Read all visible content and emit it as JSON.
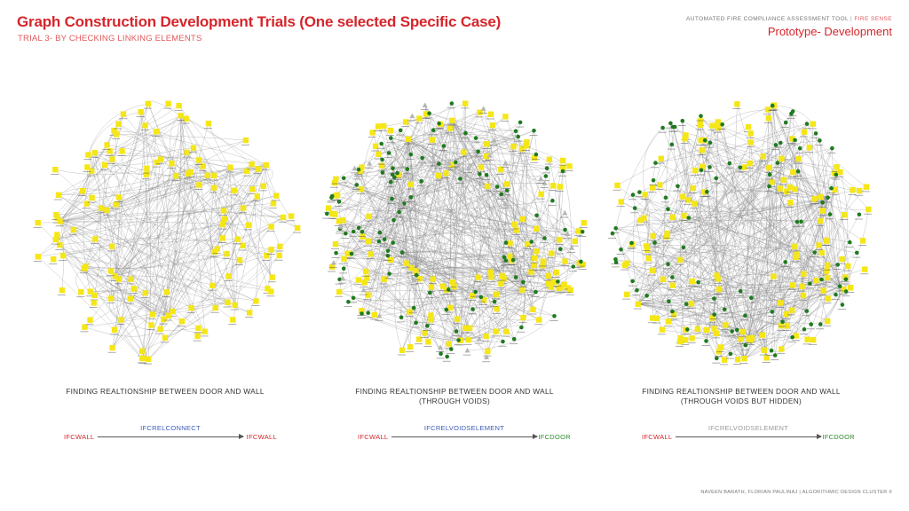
{
  "header": {
    "title": "Graph Construction Development Trials (One selected Specific Case)",
    "subtitle": "TRIAL 3- BY CHECKING LINKING ELEMENTS",
    "tool_name": "AUTOMATED FIRE COMPLIANCE ASSESSMENT TOOL",
    "tool_separator": " | ",
    "tool_brand": "FIRE SENSE",
    "stage": "Prototype- Development"
  },
  "panels": [
    {
      "caption_line1": "FINDING REALTIONSHIP BETWEEN DOOR AND WALL",
      "caption_line2": "",
      "relation": {
        "from": "IFCWALL",
        "label": "IFCRELCONNECT",
        "to": "IFCWALL",
        "label_color": "#3b5bb5",
        "to_color": "#d6252b"
      },
      "graph": {
        "yellow_nodes": 140,
        "green_nodes": 0,
        "grey_nodes": 0,
        "edges": 300,
        "seed": 11
      }
    },
    {
      "caption_line1": "FINDING REALTIONSHIP BETWEEN DOOR AND WALL",
      "caption_line2": "(THROUGH VOIDS)",
      "relation": {
        "from": "IFCWALL",
        "label": "IFCRELVOIDSELEMENT",
        "to": "IFCDOOR",
        "label_color": "#3b5bb5",
        "to_color": "#2e8b2e"
      },
      "graph": {
        "yellow_nodes": 150,
        "green_nodes": 110,
        "grey_nodes": 30,
        "edges": 520,
        "seed": 23
      }
    },
    {
      "caption_line1": "FINDING REALTIONSHIP BETWEEN DOOR AND WALL",
      "caption_line2": "(THROUGH VOIDS BUT HIDDEN)",
      "relation": {
        "from": "IFCWALL",
        "label": "IFCRELVOIDSELEMENT",
        "to": "IFCDOOR",
        "label_color": "#9a9a9a",
        "to_color": "#2e8b2e"
      },
      "graph": {
        "yellow_nodes": 150,
        "green_nodes": 100,
        "grey_nodes": 0,
        "edges": 480,
        "seed": 37
      }
    }
  ],
  "colors": {
    "accent": "#d6252b",
    "node_wall": "#f5e617",
    "node_door": "#1f7a1f",
    "node_void": "#b5b5b5",
    "edge": "#8a8a8a"
  },
  "footer": {
    "authors": "NAVEEN BARATH, FLORIAN PAULINAJ",
    "separator": " | ",
    "cluster": "ALGORITHMIC DESIGN CLUSTER II"
  }
}
